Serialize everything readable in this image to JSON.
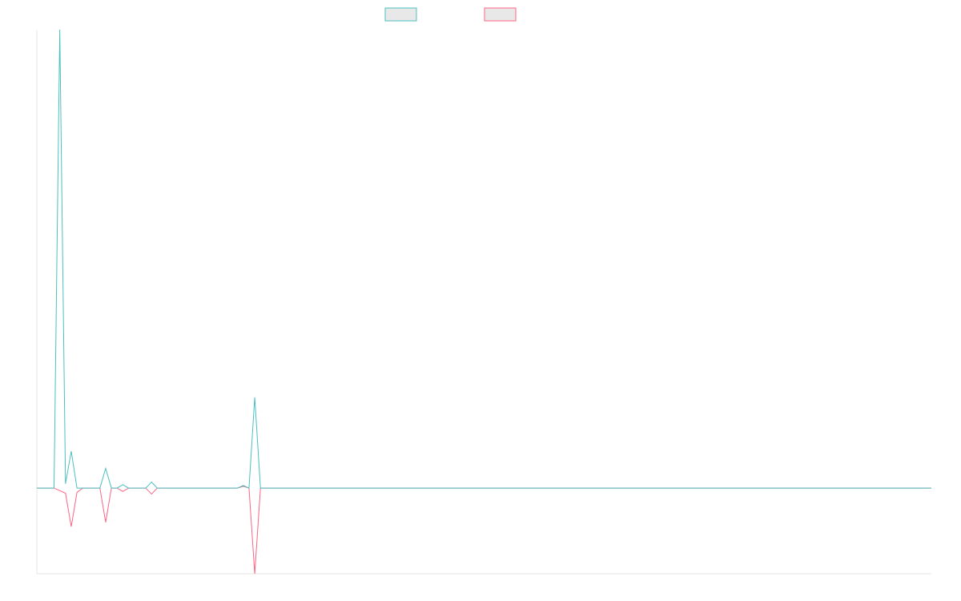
{
  "chart_data": {
    "type": "line",
    "categories": [
      null,
      null,
      null,
      null,
      null,
      null,
      null,
      null,
      null,
      null,
      null,
      null,
      null,
      null,
      null,
      null,
      null,
      null,
      null,
      null,
      null,
      null,
      null,
      null,
      null,
      null,
      null,
      null,
      null,
      null,
      null,
      null,
      null,
      null,
      null,
      null,
      null,
      null,
      null,
      null,
      null,
      null,
      null,
      null,
      null,
      null,
      null,
      null,
      null,
      null,
      null,
      null,
      null,
      null,
      null,
      null,
      null,
      null,
      null,
      null,
      null,
      null,
      null,
      null,
      null,
      null,
      null,
      null,
      null,
      null,
      null,
      null,
      null,
      null,
      null,
      null,
      null,
      null,
      null,
      null,
      null,
      null,
      null,
      null,
      null,
      null,
      null,
      null,
      null,
      null,
      null,
      null,
      null,
      null,
      null,
      null,
      null,
      null,
      null,
      null,
      null,
      null,
      null,
      null,
      null,
      null,
      null,
      null,
      null,
      null,
      null,
      null,
      null,
      null,
      null,
      null,
      null,
      null,
      null,
      null,
      null,
      null,
      null,
      null,
      null,
      null,
      null,
      null,
      null,
      null,
      null,
      null,
      null,
      null,
      null,
      null,
      null,
      null,
      null,
      null,
      null,
      null,
      null,
      null,
      null,
      null,
      null,
      null,
      null,
      null,
      null,
      null,
      null,
      null,
      null,
      null,
      null
    ],
    "series": [
      {
        "color": "#4bc0c0",
        "values": [
          0,
          0,
          0,
          0,
          5.35,
          0.05,
          0.43,
          0,
          0,
          0,
          0,
          0,
          0.23,
          0,
          0,
          0.04,
          0,
          0,
          0,
          0,
          0.07,
          0,
          0,
          0,
          0,
          0,
          0,
          0,
          0,
          0,
          0,
          0,
          0,
          0,
          0,
          0,
          0.03,
          0,
          1.06,
          0,
          0,
          0,
          0,
          0,
          0,
          0,
          0,
          0,
          0,
          0,
          0,
          0,
          0,
          0,
          0,
          0,
          0,
          0,
          0,
          0,
          0,
          0,
          0,
          0,
          0,
          0,
          0,
          0,
          0,
          0,
          0,
          0,
          0,
          0,
          0,
          0,
          0,
          0,
          0,
          0,
          0,
          0,
          0,
          0,
          0,
          0,
          0,
          0,
          0,
          0,
          0,
          0,
          0,
          0,
          0,
          0,
          0,
          0,
          0,
          0,
          0,
          0,
          0,
          0,
          0,
          0,
          0,
          0,
          0,
          0,
          0,
          0,
          0,
          0,
          0,
          0,
          0,
          0,
          0,
          0,
          0,
          0,
          0,
          0,
          0,
          0,
          0,
          0,
          0,
          0,
          0,
          0,
          0,
          0,
          0,
          0,
          0,
          0,
          0,
          0,
          0,
          0,
          0,
          0,
          0,
          0,
          0,
          0,
          0,
          0,
          0,
          0,
          0,
          0,
          0,
          0,
          0
        ]
      },
      {
        "color": "#ff6384",
        "values": [
          0,
          0,
          0,
          0,
          -0.03,
          -0.06,
          -0.45,
          -0.05,
          0,
          0,
          0,
          0,
          -0.4,
          0,
          0,
          -0.04,
          0,
          0,
          0,
          0,
          -0.07,
          0,
          0,
          0,
          0,
          0,
          0,
          0,
          0,
          0,
          0,
          0,
          0,
          0,
          0,
          0,
          0.02,
          0,
          -1,
          0,
          0,
          0,
          0,
          0,
          0,
          0,
          0,
          0,
          0,
          0,
          0,
          0,
          0,
          0,
          0,
          0,
          0,
          0,
          0,
          0,
          0,
          0,
          0,
          0,
          0,
          0,
          0,
          0,
          0,
          0,
          0,
          0,
          0,
          0,
          0,
          0,
          0,
          0,
          0,
          0,
          0,
          0,
          0,
          0,
          0,
          0,
          0,
          0,
          0,
          0,
          0,
          0,
          0,
          0,
          0,
          0,
          0,
          0,
          0,
          0,
          0,
          0,
          0,
          0,
          0,
          0,
          0,
          0,
          0,
          0,
          0,
          0,
          0,
          0,
          0,
          0,
          0,
          0,
          0,
          0,
          0,
          0,
          0,
          0,
          0,
          0,
          0,
          0,
          0,
          0,
          0,
          0,
          0,
          0,
          0,
          0,
          0,
          0,
          0,
          0,
          0,
          0,
          0,
          0,
          0,
          0,
          0,
          0,
          0,
          0,
          0,
          0,
          0,
          0,
          0,
          0,
          0
        ]
      }
    ],
    "ylim": [
      -1,
      5.35
    ],
    "legend": "top"
  }
}
